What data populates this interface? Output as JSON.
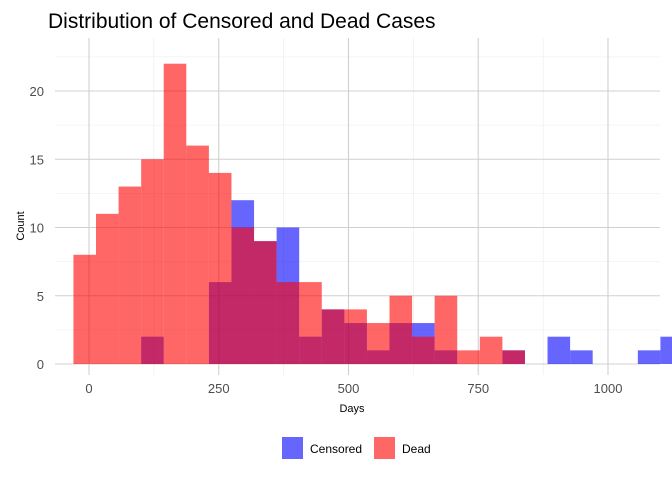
{
  "chart_data": {
    "type": "histogram",
    "title": "Distribution of Censored and Dead Cases",
    "xlabel": "Days",
    "ylabel": "Count",
    "bin_width": 43.5,
    "bin_start": -30,
    "xlim": [
      -50,
      1045
    ],
    "ylim": [
      0,
      23
    ],
    "x_ticks": [
      0,
      250,
      500,
      750,
      1000
    ],
    "y_ticks": [
      0,
      5,
      10,
      15,
      20
    ],
    "grid": true,
    "legend_position": "bottom",
    "series": [
      {
        "name": "Censored",
        "color": "#0000FF",
        "opacity": 0.6,
        "values": [
          0,
          0,
          0,
          2,
          0,
          0,
          6,
          12,
          9,
          10,
          2,
          4,
          3,
          1,
          3,
          3,
          1,
          0,
          0,
          1,
          0,
          2,
          1,
          0,
          0,
          1,
          2
        ]
      },
      {
        "name": "Dead",
        "color": "#FF0000",
        "opacity": 0.6,
        "values": [
          8,
          11,
          13,
          15,
          22,
          16,
          14,
          10,
          9,
          6,
          6,
          4,
          4,
          3,
          5,
          2,
          5,
          1,
          2,
          1,
          0,
          0,
          0,
          0,
          0,
          0,
          0
        ]
      }
    ]
  }
}
